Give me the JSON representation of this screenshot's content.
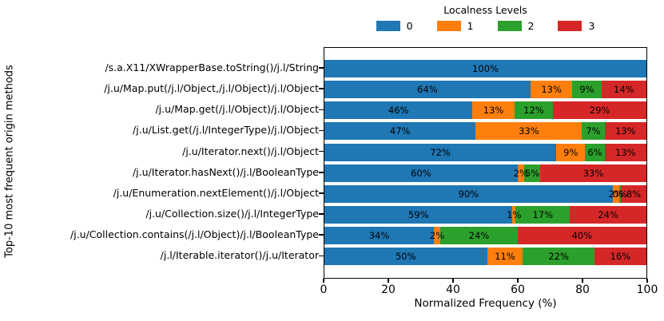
{
  "chart_data": {
    "type": "bar",
    "orientation": "horizontal",
    "stacked": true,
    "legend_title": "Localness Levels",
    "legend_position": "top center",
    "xlabel": "Normalized Frequency (%)",
    "ylabel": "Top-10 most frequent origin methods",
    "xlim": [
      0,
      100
    ],
    "x_ticks": [
      "0",
      "20",
      "40",
      "60",
      "80",
      "100"
    ],
    "grid": "off",
    "series": [
      {
        "name": "0",
        "color": "#1f77b4"
      },
      {
        "name": "1",
        "color": "#ff7f0e"
      },
      {
        "name": "2",
        "color": "#2ca02c"
      },
      {
        "name": "3",
        "color": "#d62728"
      }
    ],
    "rows": [
      {
        "category": "/s.a.X11/XWrapperBase.toString()/j.l/String",
        "values": [
          100,
          0,
          0,
          0
        ],
        "labels": [
          "100%",
          "",
          "",
          ""
        ]
      },
      {
        "category": "/j.u/Map.put(/j.l/Object,/j.l/Object)/j.l/Object",
        "values": [
          64,
          13,
          9,
          14
        ],
        "labels": [
          "64%",
          "13%",
          "9%",
          "14%"
        ]
      },
      {
        "category": "/j.u/Map.get(/j.l/Object)/j.l/Object",
        "values": [
          46,
          13,
          12,
          29
        ],
        "labels": [
          "46%",
          "13%",
          "12%",
          "29%"
        ]
      },
      {
        "category": "/j.u/List.get(/j.l/IntegerType)/j.l/Object",
        "values": [
          47,
          33,
          7,
          13
        ],
        "labels": [
          "47%",
          "33%",
          "7%",
          "13%"
        ]
      },
      {
        "category": "/j.u/Iterator.next()/j.l/Object",
        "values": [
          72,
          9,
          6,
          13
        ],
        "labels": [
          "72%",
          "9%",
          "6%",
          "13%"
        ]
      },
      {
        "category": "/j.u/Iterator.hasNext()/j.l/BooleanType",
        "values": [
          60,
          2,
          5,
          33
        ],
        "labels": [
          "60%",
          "2%",
          "5%",
          "33%"
        ]
      },
      {
        "category": "/j.u/Enumeration.nextElement()/j.l/Object",
        "values": [
          90,
          2,
          0,
          8
        ],
        "labels": [
          "90%",
          "2%",
          "0%",
          "8%"
        ]
      },
      {
        "category": "/j.u/Collection.size()/j.l/IntegerType",
        "values": [
          59,
          1,
          17,
          24
        ],
        "labels": [
          "59%",
          "1%",
          "17%",
          "24%"
        ]
      },
      {
        "category": "/j.u/Collection.contains(/j.l/Object)/j.l/BooleanType",
        "values": [
          34,
          2,
          24,
          40
        ],
        "labels": [
          "34%",
          "2%",
          "24%",
          "40%"
        ]
      },
      {
        "category": "/j.l/Iterable.iterator()/j.u/Iterator",
        "values": [
          50,
          11,
          22,
          16
        ],
        "labels": [
          "50%",
          "11%",
          "22%",
          "16%"
        ]
      }
    ]
  }
}
